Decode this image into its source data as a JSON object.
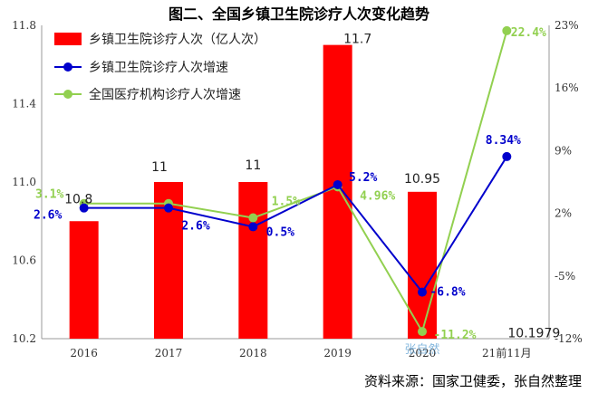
{
  "title": "图二、全国乡镇卫生院诊疗人次变化趋势",
  "source": "资料来源：国家卫健委，张自然整理",
  "watermark": "张自然",
  "colors": {
    "bar": "#ff0000",
    "town_rate": "#0000cc",
    "national_rate": "#92d050"
  },
  "chart_data": {
    "type": "bar",
    "categories": [
      "2016",
      "2017",
      "2018",
      "2019",
      "2020",
      "21前11月"
    ],
    "y_left": {
      "ylim": [
        10.2,
        11.8
      ],
      "ticks": [
        "10.2",
        "10.6",
        "11.0",
        "11.4",
        "11.8"
      ]
    },
    "y_right": {
      "ylim": [
        -12,
        23
      ],
      "ticks": [
        "-12%",
        "-5%",
        "2%",
        "9%",
        "16%",
        "23%"
      ]
    },
    "grid": false,
    "legend_position": "top-left",
    "series": [
      {
        "name": "乡镇卫生院诊疗人次（亿人次）",
        "kind": "bar",
        "axis": "left",
        "values": [
          10.8,
          11,
          11,
          11.7,
          10.95,
          10.1979
        ],
        "labels": [
          "10.8",
          "11",
          "11",
          "11.7",
          "10.95",
          "10.1979"
        ]
      },
      {
        "name": "乡镇卫生院诊疗人次增速",
        "kind": "line",
        "axis": "right",
        "values": [
          2.6,
          2.6,
          0.5,
          5.2,
          -6.8,
          8.34
        ],
        "labels": [
          "2.6%",
          "2.6%",
          "0.5%",
          "5.2%",
          "-6.8%",
          "8.34%"
        ]
      },
      {
        "name": "全国医疗机构诊疗人次增速",
        "kind": "line",
        "axis": "right",
        "values": [
          3.1,
          3.1,
          1.5,
          4.96,
          -11.2,
          22.4
        ],
        "labels": [
          "3.1%",
          "",
          "1.5%",
          "4.96%",
          "-11.2%",
          "22.4%"
        ]
      }
    ]
  }
}
